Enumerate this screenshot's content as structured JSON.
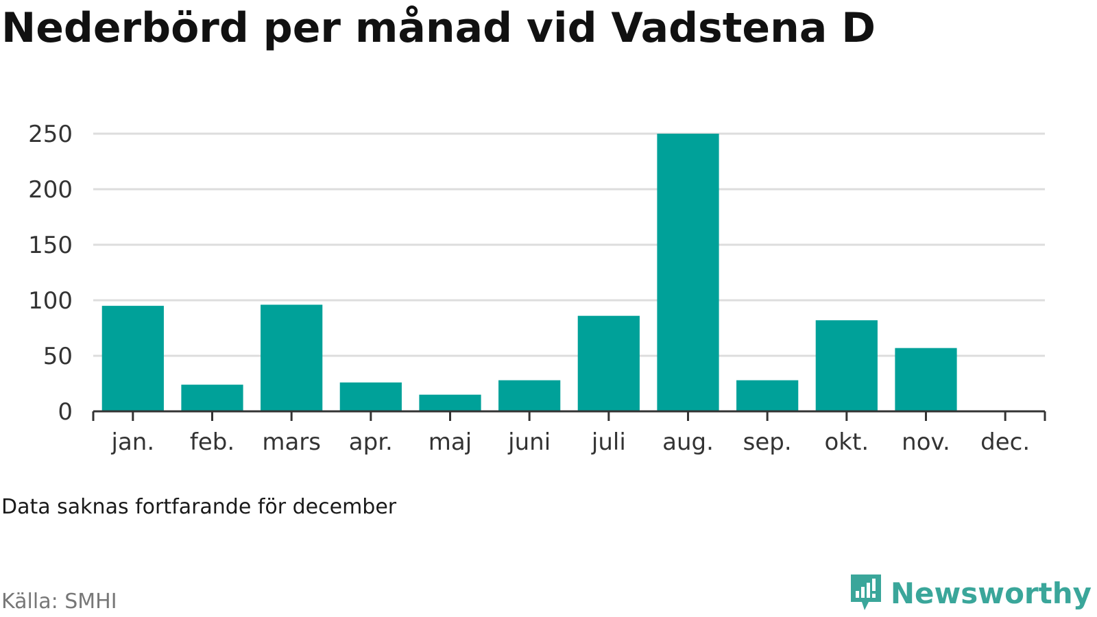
{
  "title": "Nederbörd per månad vid Vadstena D",
  "note": "Data saknas fortfarande för december",
  "source": "Källa: SMHI",
  "brand": {
    "name": "Newsworthy",
    "icon": "newsworthy-logo-icon",
    "color": "#3aa69a"
  },
  "colors": {
    "bar": "#00a199",
    "grid": "#dddddd",
    "axis": "#333333"
  },
  "chart_data": {
    "type": "bar",
    "categories": [
      "jan.",
      "feb.",
      "mars",
      "apr.",
      "maj",
      "juni",
      "juli",
      "aug.",
      "sep.",
      "okt.",
      "nov.",
      "dec."
    ],
    "values": [
      95,
      24,
      96,
      26,
      15,
      28,
      86,
      250,
      28,
      82,
      57,
      null
    ],
    "title": "",
    "xlabel": "",
    "ylabel": "",
    "ylim": [
      0,
      250
    ],
    "yticks": [
      0,
      50,
      100,
      150,
      200,
      250
    ],
    "grid": true
  }
}
